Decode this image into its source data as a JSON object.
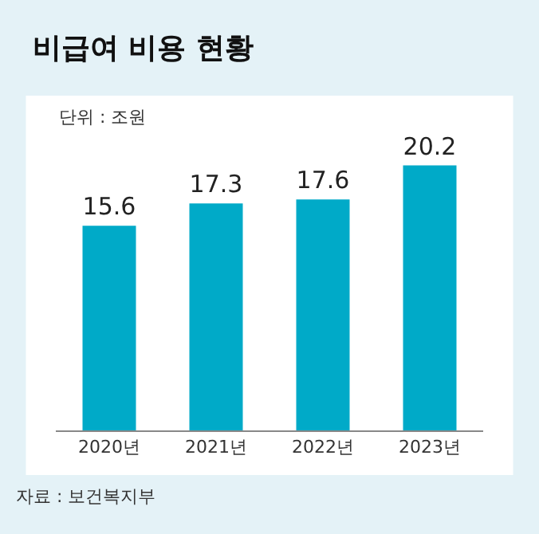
{
  "chart_data": {
    "type": "bar",
    "title": "비급여 비용 현황",
    "categories": [
      "2020년",
      "2021년",
      "2022년",
      "2023년"
    ],
    "values": [
      15.6,
      17.3,
      17.6,
      20.2
    ],
    "color": "#00aac8",
    "data_labels": true,
    "annotations": [
      "단위 : 조원",
      "자료 : 보건복지부"
    ]
  }
}
